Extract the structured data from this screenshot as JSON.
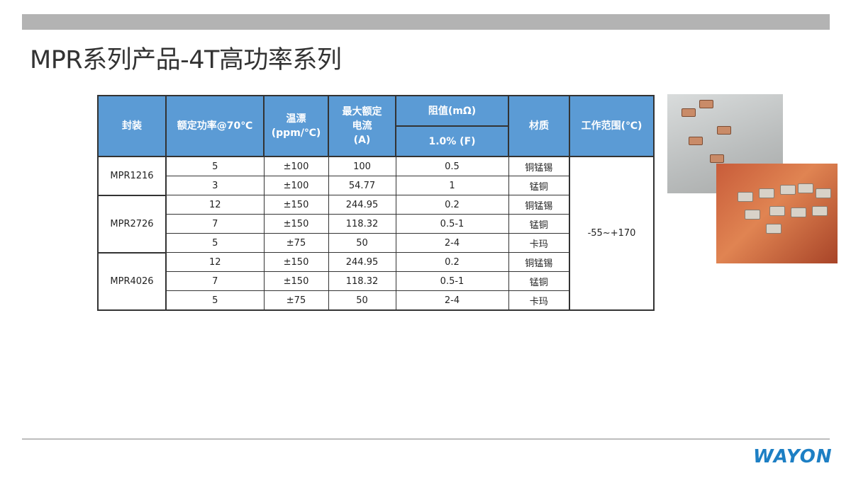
{
  "title": "MPR系列产品-4T高功率系列",
  "logo": "WAYON",
  "table": {
    "headers": {
      "package": "封装",
      "power": "额定功率@70℃",
      "tcr_line1": "温漂",
      "tcr_line2": "(ppm/℃)",
      "current_line1": "最大额定",
      "current_line2": "电流",
      "current_line3": "(A)",
      "resistance": "阻值(mΩ)",
      "tolerance": "1.0% (F)",
      "material": "材质",
      "range": "工作范围(℃)"
    },
    "operating_range": "-55~+170",
    "groups": [
      {
        "package": "MPR1216",
        "rows": [
          [
            "5",
            "±100",
            "100",
            "0.5",
            "铜锰锡"
          ],
          [
            "3",
            "±100",
            "54.77",
            "1",
            "锰铜"
          ]
        ]
      },
      {
        "package": "MPR2726",
        "rows": [
          [
            "12",
            "±150",
            "244.95",
            "0.2",
            "铜锰锡"
          ],
          [
            "7",
            "±150",
            "118.32",
            "0.5-1",
            "锰铜"
          ],
          [
            "5",
            "±75",
            "50",
            "2-4",
            "卡玛"
          ]
        ]
      },
      {
        "package": "MPR4026",
        "rows": [
          [
            "12",
            "±150",
            "244.95",
            "0.2",
            "铜锰锡"
          ],
          [
            "7",
            "±150",
            "118.32",
            "0.5-1",
            "锰铜"
          ],
          [
            "5",
            "±75",
            "50",
            "2-4",
            "卡玛"
          ]
        ]
      }
    ]
  },
  "colors": {
    "header_bg": "#5b9bd5",
    "logo": "#1d7fc4"
  }
}
